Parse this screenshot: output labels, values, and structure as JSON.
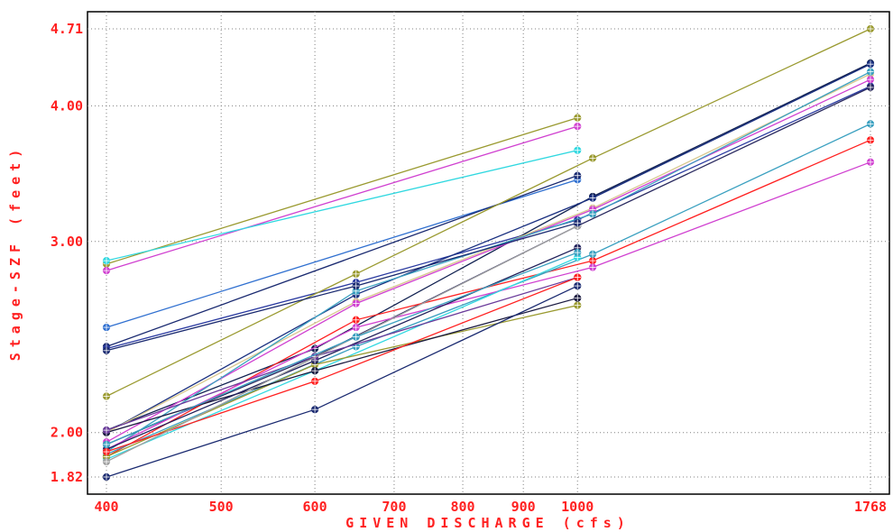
{
  "chart_data": {
    "type": "line",
    "title": "",
    "xlabel": "GIVEN DISCHARGE (cfs)",
    "ylabel": "Stage-SZF (feet)",
    "x_scale": "log",
    "y_scale": "log",
    "xlim": [
      400,
      1768
    ],
    "ylim": [
      1.82,
      4.71
    ],
    "x_ticks": [
      400,
      500,
      600,
      700,
      800,
      900,
      1000,
      1768
    ],
    "x_tick_labels": [
      "400",
      "500",
      "600",
      "700",
      "800",
      "900",
      "1000",
      "1768"
    ],
    "y_ticks": [
      1.82,
      2.0,
      3.0,
      4.0,
      4.71
    ],
    "y_tick_labels": [
      "1.82",
      "2.00",
      "3.00",
      "4.00",
      "4.71"
    ],
    "grid": true,
    "legend": "none",
    "label_color": "#ff2020",
    "series": [
      {
        "color": "#9a9a30",
        "points": [
          [
            400,
            2.86
          ],
          [
            1000,
            3.9
          ]
        ]
      },
      {
        "color": "#d040d0",
        "points": [
          [
            400,
            2.82
          ],
          [
            1000,
            3.83
          ]
        ]
      },
      {
        "color": "#30d8e0",
        "points": [
          [
            400,
            2.88
          ],
          [
            1000,
            3.64
          ]
        ]
      },
      {
        "color": "#3070d0",
        "points": [
          [
            400,
            2.5
          ],
          [
            1000,
            3.42
          ]
        ]
      },
      {
        "color": "#1a2a70",
        "points": [
          [
            400,
            2.4
          ],
          [
            1000,
            3.45
          ]
        ]
      },
      {
        "color": "#2a3aa0",
        "points": [
          [
            400,
            2.39
          ],
          [
            650,
            2.75
          ],
          [
            1000,
            3.14
          ],
          [
            1768,
            4.17
          ]
        ]
      },
      {
        "color": "#9a9a30",
        "points": [
          [
            400,
            2.16
          ],
          [
            650,
            2.8
          ],
          [
            1030,
            3.58
          ],
          [
            1768,
            4.71
          ]
        ]
      },
      {
        "color": "#102050",
        "points": [
          [
            400,
            2.01
          ],
          [
            600,
            2.39
          ],
          [
            1030,
            3.3
          ],
          [
            1768,
            4.38
          ]
        ]
      },
      {
        "color": "#1a3080",
        "points": [
          [
            400,
            2.0
          ],
          [
            650,
            2.68
          ],
          [
            1030,
            3.29
          ],
          [
            1768,
            4.37
          ]
        ]
      },
      {
        "color": "#d8c890",
        "points": [
          [
            400,
            2.0
          ],
          [
            650,
            2.64
          ],
          [
            1030,
            3.22
          ],
          [
            1768,
            4.28
          ]
        ]
      },
      {
        "color": "#d040d0",
        "points": [
          [
            400,
            1.96
          ],
          [
            650,
            2.63
          ],
          [
            1030,
            3.21
          ],
          [
            1768,
            4.23
          ]
        ]
      },
      {
        "color": "#3aa0c0",
        "points": [
          [
            400,
            1.92
          ],
          [
            650,
            2.7
          ],
          [
            1030,
            3.18
          ],
          [
            1768,
            4.3
          ]
        ]
      },
      {
        "color": "#2a2a60",
        "points": [
          [
            400,
            1.95
          ],
          [
            600,
            2.35
          ],
          [
            1000,
            3.1
          ],
          [
            1768,
            4.16
          ]
        ]
      },
      {
        "color": "#ff2020",
        "points": [
          [
            400,
            1.9
          ],
          [
            650,
            2.54
          ],
          [
            1030,
            2.88
          ],
          [
            1768,
            3.72
          ]
        ]
      },
      {
        "color": "#3aa0c0",
        "points": [
          [
            400,
            1.91
          ],
          [
            650,
            2.4
          ],
          [
            1030,
            2.92
          ],
          [
            1768,
            3.85
          ]
        ]
      },
      {
        "color": "#d040d0",
        "points": [
          [
            400,
            1.93
          ],
          [
            650,
            2.5
          ],
          [
            1030,
            2.84
          ],
          [
            1768,
            3.55
          ]
        ]
      },
      {
        "color": "#30d8e0",
        "points": [
          [
            400,
            1.89
          ],
          [
            600,
            2.28
          ],
          [
            1000,
            2.9
          ]
        ]
      },
      {
        "color": "#9a9a30",
        "points": [
          [
            400,
            1.9
          ],
          [
            600,
            2.31
          ],
          [
            1000,
            2.62
          ]
        ]
      },
      {
        "color": "#1a1a40",
        "points": [
          [
            400,
            2.0
          ],
          [
            600,
            2.28
          ],
          [
            1000,
            2.66
          ]
        ]
      },
      {
        "color": "#20205a",
        "points": [
          [
            400,
            1.93
          ],
          [
            600,
            2.33
          ],
          [
            1000,
            2.96
          ]
        ]
      },
      {
        "color": "#6a3a9a",
        "points": [
          [
            400,
            2.01
          ],
          [
            600,
            2.35
          ],
          [
            1000,
            2.78
          ]
        ]
      },
      {
        "color": "#ff2020",
        "points": [
          [
            400,
            1.92
          ],
          [
            600,
            2.23
          ],
          [
            1000,
            2.78
          ]
        ]
      },
      {
        "color": "#a0a0a0",
        "points": [
          [
            400,
            1.88
          ],
          [
            650,
            2.45
          ],
          [
            1000,
            3.1
          ]
        ]
      },
      {
        "color": "#1a2a70",
        "points": [
          [
            400,
            1.82
          ],
          [
            600,
            2.1
          ],
          [
            1000,
            2.73
          ]
        ]
      },
      {
        "color": "#3aa0c0",
        "points": [
          [
            400,
            1.95
          ],
          [
            650,
            2.45
          ],
          [
            1000,
            2.93
          ]
        ]
      },
      {
        "color": "#1a2a70",
        "points": [
          [
            400,
            2.38
          ],
          [
            650,
            2.73
          ],
          [
            1000,
            3.12
          ]
        ]
      }
    ]
  }
}
